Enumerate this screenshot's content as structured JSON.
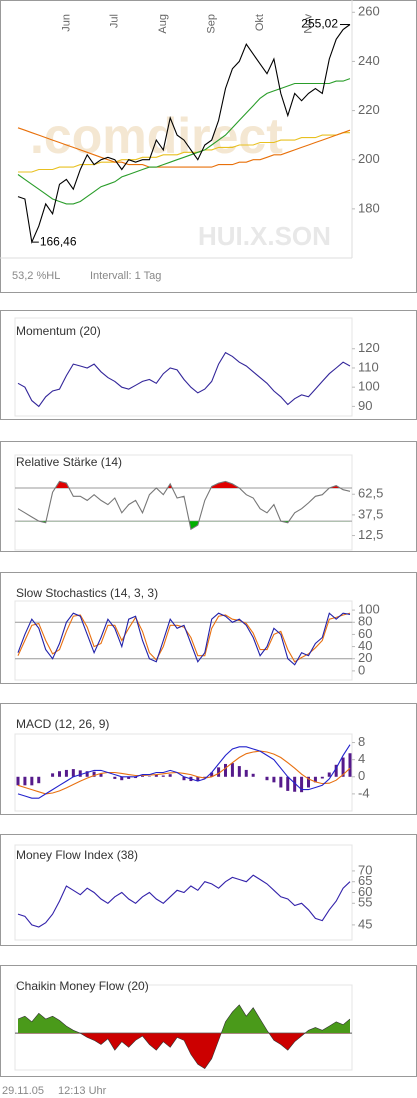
{
  "chart_data": [
    {
      "type": "line",
      "ylim": [
        160,
        265
      ],
      "yticks": [
        180,
        200,
        220,
        240,
        260
      ],
      "x_labels": [
        {
          "label": "Jun",
          "index": 7
        },
        {
          "label": "Jul",
          "index": 14
        },
        {
          "label": "Aug",
          "index": 21
        },
        {
          "label": "Sep",
          "index": 28
        },
        {
          "label": "Okt",
          "index": 35
        },
        {
          "label": "Nov",
          "index": 42
        }
      ],
      "annotations": [
        {
          "value": 255.02,
          "label": "255,02",
          "index": 48
        },
        {
          "value": 166.46,
          "label": "166,46",
          "index": 2
        }
      ],
      "watermark": ".comdirect",
      "symbol": "HUI.X.SON",
      "footer": [
        "53,2 %HL",
        "Intervall: 1 Tag"
      ],
      "series": [
        {
          "color": "#e8c020",
          "values": [
            195,
            195,
            195,
            196,
            196,
            196,
            197,
            197,
            197,
            198,
            198,
            198,
            199,
            199,
            199,
            200,
            200,
            200,
            201,
            201,
            201,
            202,
            202,
            202,
            203,
            203,
            203,
            204,
            204,
            205,
            205,
            205,
            206,
            206,
            206,
            207,
            207,
            207,
            208,
            208,
            208,
            209,
            209,
            209,
            210,
            210,
            210,
            211,
            211
          ]
        },
        {
          "color": "#e8700a",
          "values": [
            213,
            212,
            211,
            210,
            209,
            208,
            207,
            206,
            205,
            204,
            203,
            202,
            201,
            200,
            199,
            199,
            198,
            198,
            198,
            197,
            197,
            197,
            197,
            197,
            197,
            197,
            197,
            197,
            197,
            198,
            198,
            198,
            199,
            199,
            200,
            200,
            201,
            202,
            202,
            203,
            204,
            205,
            206,
            207,
            208,
            209,
            210,
            211,
            212
          ]
        },
        {
          "color": "#2a9d2a",
          "values": [
            194,
            192,
            190,
            188,
            186,
            184,
            183,
            182,
            182,
            183,
            185,
            187,
            189,
            190,
            191,
            193,
            194,
            195,
            196,
            197,
            197,
            198,
            199,
            200,
            201,
            202,
            203,
            204,
            206,
            208,
            210,
            213,
            216,
            219,
            222,
            225,
            227,
            228,
            229,
            230,
            231,
            231,
            231,
            231,
            231,
            231,
            232,
            232,
            233
          ]
        },
        {
          "color": "#000000",
          "values": [
            185,
            184,
            166.46,
            173,
            182,
            178,
            190,
            192,
            188,
            196,
            202,
            198,
            200,
            201,
            200,
            196,
            200,
            199,
            200,
            200,
            208,
            204,
            217,
            210,
            208,
            204,
            200,
            206,
            208,
            216,
            229,
            237,
            240,
            247,
            243,
            239,
            235,
            241,
            227,
            218,
            227,
            224,
            227,
            229,
            227,
            241,
            249,
            253,
            255.02
          ]
        }
      ]
    },
    {
      "type": "line",
      "title": "Momentum (20)",
      "ylim": [
        85,
        136
      ],
      "yticks": [
        90,
        100,
        110,
        120
      ],
      "series": [
        {
          "color": "#33269a",
          "values": [
            102,
            100,
            93,
            90,
            95,
            98,
            99,
            106,
            112,
            111,
            110,
            112,
            108,
            105,
            103,
            100,
            99,
            101,
            103,
            104,
            102,
            107,
            110,
            109,
            104,
            100,
            97,
            99,
            103,
            112,
            118,
            116,
            113,
            111,
            108,
            105,
            102,
            98,
            95,
            91,
            94,
            96,
            95,
            99,
            103,
            107,
            110,
            113,
            111
          ]
        }
      ]
    },
    {
      "type": "line",
      "title": "Relative Stärke (14)",
      "ylim": [
        -5,
        110
      ],
      "yticks": [
        {
          "value": 12.5,
          "label": "12,5"
        },
        {
          "value": 37.5,
          "label": "37,5"
        },
        {
          "value": 62.5,
          "label": "62,5"
        }
      ],
      "thresholds": [
        30,
        70
      ],
      "threshold_colors": [
        "#00b000",
        "#e00000"
      ],
      "series": [
        {
          "color": "#777777",
          "values": [
            45,
            40,
            35,
            30,
            28,
            65,
            78,
            76,
            60,
            60,
            55,
            62,
            55,
            50,
            58,
            40,
            50,
            55,
            40,
            62,
            70,
            62,
            75,
            58,
            60,
            20,
            25,
            55,
            72,
            76,
            78,
            75,
            70,
            62,
            58,
            45,
            40,
            50,
            30,
            28,
            40,
            45,
            52,
            60,
            62,
            70,
            73,
            68,
            66
          ]
        }
      ]
    },
    {
      "type": "line",
      "title": "Slow Stochastics (14, 3, 3)",
      "ylim": [
        -15,
        115
      ],
      "yticks": [
        0,
        20,
        40,
        60,
        80,
        100
      ],
      "thresholds": [
        20,
        80
      ],
      "series": [
        {
          "color": "#e87010",
          "values": [
            25,
            50,
            75,
            78,
            50,
            28,
            35,
            65,
            90,
            92,
            72,
            40,
            45,
            75,
            75,
            50,
            70,
            88,
            65,
            30,
            18,
            40,
            75,
            75,
            72,
            55,
            25,
            25,
            70,
            90,
            92,
            85,
            83,
            78,
            62,
            35,
            35,
            60,
            65,
            35,
            15,
            22,
            28,
            38,
            50,
            85,
            88,
            92,
            95
          ]
        },
        {
          "color": "#2222aa",
          "values": [
            30,
            60,
            85,
            70,
            35,
            20,
            45,
            80,
            95,
            90,
            60,
            30,
            55,
            85,
            70,
            40,
            85,
            90,
            50,
            20,
            15,
            50,
            85,
            70,
            75,
            45,
            15,
            30,
            85,
            95,
            90,
            80,
            85,
            75,
            55,
            25,
            40,
            70,
            60,
            20,
            10,
            30,
            25,
            45,
            55,
            95,
            85,
            95,
            93
          ]
        }
      ]
    },
    {
      "type": "line",
      "title": "MACD (12, 26, 9)",
      "ylim": [
        -8,
        10
      ],
      "yticks": [
        -4,
        0,
        4,
        8
      ],
      "series": [
        {
          "color": "#551a8b",
          "kind": "bar",
          "values": [
            -2,
            -2,
            -2,
            -1.5,
            0,
            0.8,
            1.3,
            1.6,
            1.8,
            1.5,
            1.3,
            1.2,
            0.7,
            0,
            -0.5,
            -0.8,
            -0.5,
            -0.3,
            0.2,
            0.1,
            0.5,
            0.3,
            0.6,
            0,
            -0.8,
            -1,
            -1,
            -0.2,
            1,
            2.2,
            3,
            3.2,
            2.5,
            1.6,
            0.7,
            0,
            -0.8,
            -1.3,
            -2.5,
            -3.3,
            -3.5,
            -3.6,
            -2.5,
            -1.3,
            -0.4,
            1,
            2.8,
            4.5,
            5.5
          ]
        },
        {
          "color": "#e87010",
          "values": [
            -2,
            -2.5,
            -3,
            -3.5,
            -4,
            -3.8,
            -3.3,
            -2.6,
            -1.8,
            -1,
            -0.3,
            0.3,
            0.8,
            1,
            1,
            0.8,
            0.5,
            0.3,
            0.3,
            0.4,
            0.5,
            0.7,
            0.9,
            1,
            0.8,
            0.5,
            0,
            -0.3,
            0,
            0.8,
            2,
            3.3,
            4.5,
            5.4,
            5.8,
            6,
            5.8,
            5.3,
            4.5,
            3.3,
            2,
            0.6,
            -0.5,
            -1.2,
            -1.6,
            -1.5,
            -0.8,
            0.5,
            2
          ]
        },
        {
          "color": "#2222cc",
          "values": [
            -4,
            -4.5,
            -5,
            -5,
            -4,
            -3,
            -2,
            -1,
            0,
            0.5,
            1,
            1.5,
            1.5,
            1,
            0.5,
            0,
            0,
            0,
            0.5,
            0.5,
            1,
            1,
            1.5,
            1,
            0,
            -0.5,
            -1,
            -0.5,
            1,
            3,
            5,
            6.5,
            7,
            7,
            6.5,
            6,
            5,
            4,
            2,
            0,
            -1.5,
            -3,
            -3,
            -2.5,
            -2,
            -0.5,
            2,
            5,
            7.5
          ]
        }
      ]
    },
    {
      "type": "line",
      "title": "Money Flow Index (38)",
      "ylim": [
        38,
        82
      ],
      "yticks": [
        45,
        55,
        60,
        65,
        70
      ],
      "series": [
        {
          "color": "#3322aa",
          "values": [
            50,
            49,
            45,
            44,
            46,
            50,
            56,
            63,
            61,
            59,
            62,
            60,
            57,
            55,
            58,
            60,
            57,
            55,
            58,
            60,
            57,
            55,
            58,
            61,
            60,
            63,
            61,
            65,
            64,
            62,
            65,
            67,
            66,
            65,
            68,
            66,
            64,
            61,
            58,
            57,
            54,
            55,
            52,
            48,
            47,
            52,
            56,
            62,
            65
          ]
        }
      ]
    },
    {
      "type": "area",
      "title": "Chaikin Money Flow (20)",
      "ylim": [
        -0.26,
        0.34
      ],
      "colors": [
        "#4a9a1a",
        "#cc0000"
      ],
      "series": [
        {
          "color": "#333333",
          "values": [
            0.1,
            0.12,
            0.08,
            0.14,
            0.1,
            0.12,
            0.09,
            0.05,
            0.02,
            0,
            -0.03,
            -0.05,
            -0.08,
            -0.04,
            -0.12,
            -0.06,
            -0.1,
            -0.05,
            -0.02,
            -0.08,
            -0.12,
            -0.06,
            -0.1,
            -0.03,
            -0.05,
            -0.15,
            -0.22,
            -0.25,
            -0.18,
            -0.05,
            0.08,
            0.15,
            0.2,
            0.12,
            0.18,
            0.1,
            0.02,
            -0.05,
            -0.08,
            -0.12,
            -0.06,
            -0.02,
            0.02,
            0.04,
            0.02,
            0.05,
            0.08,
            0.06,
            0.1
          ]
        }
      ]
    }
  ],
  "timestamp": [
    "29.11.05",
    "12:13 Uhr"
  ]
}
